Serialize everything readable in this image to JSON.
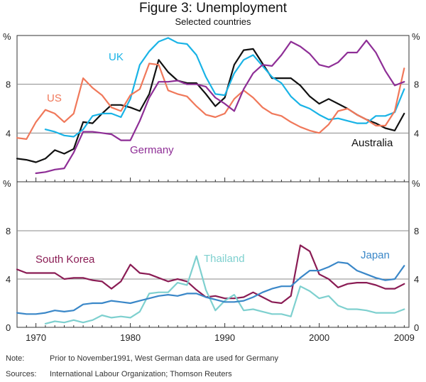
{
  "title": "Figure 3: Unemployment",
  "subtitle": "Selected countries",
  "unit_label": "%",
  "notes": [
    {
      "label": "Note:",
      "text": "Prior to November1991, West German data are used for Germany"
    },
    {
      "label": "Sources:",
      "text": "International Labour Organization; Thomson Reuters"
    }
  ],
  "colors": {
    "Australia": "#111111",
    "UK": "#19b3e6",
    "US": "#f0785a",
    "Germany": "#8e2e96",
    "South Korea": "#8a1c54",
    "Thailand": "#7ed0cf",
    "Japan": "#3a87c8"
  },
  "chart_data": [
    {
      "type": "line",
      "panel": "top",
      "xlim": [
        1968,
        2009.5
      ],
      "ylim": [
        0,
        12
      ],
      "yticks": [
        4,
        8
      ],
      "xticks": [
        1970,
        1980,
        1990,
        2000,
        2009
      ],
      "series": [
        {
          "name": "Australia",
          "x": [
            1968,
            1969,
            1970,
            1971,
            1972,
            1973,
            1974,
            1975,
            1976,
            1977,
            1978,
            1979,
            1980,
            1981,
            1982,
            1983,
            1984,
            1985,
            1986,
            1987,
            1988,
            1989,
            1990,
            1991,
            1992,
            1993,
            1994,
            1995,
            1996,
            1997,
            1998,
            1999,
            2000,
            2001,
            2002,
            2003,
            2004,
            2005,
            2006,
            2007,
            2008,
            2009
          ],
          "y": [
            1.9,
            1.8,
            1.6,
            1.9,
            2.6,
            2.3,
            2.7,
            4.9,
            4.8,
            5.6,
            6.3,
            6.3,
            6.1,
            5.8,
            7.2,
            10.0,
            9.0,
            8.3,
            8.1,
            8.1,
            7.2,
            6.2,
            6.9,
            9.6,
            10.8,
            10.9,
            9.7,
            8.5,
            8.5,
            8.5,
            7.9,
            7.0,
            6.4,
            6.8,
            6.4,
            6.0,
            5.5,
            5.1,
            4.8,
            4.4,
            4.2,
            5.6
          ]
        },
        {
          "name": "UK",
          "x": [
            1971,
            1972,
            1973,
            1974,
            1975,
            1976,
            1977,
            1978,
            1979,
            1980,
            1981,
            1982,
            1983,
            1984,
            1985,
            1986,
            1987,
            1988,
            1989,
            1990,
            1991,
            1992,
            1993,
            1994,
            1995,
            1996,
            1997,
            1998,
            1999,
            2000,
            2001,
            2002,
            2003,
            2004,
            2005,
            2006,
            2007,
            2008,
            2009
          ],
          "y": [
            4.3,
            4.1,
            3.8,
            3.7,
            4.3,
            5.4,
            5.6,
            5.6,
            5.3,
            6.8,
            9.6,
            10.7,
            11.5,
            11.8,
            11.4,
            11.3,
            10.4,
            8.6,
            7.2,
            7.1,
            8.9,
            10.0,
            10.4,
            9.5,
            8.6,
            8.1,
            7.0,
            6.3,
            6.0,
            5.5,
            5.1,
            5.2,
            5.0,
            4.8,
            4.8,
            5.4,
            5.4,
            5.7,
            7.6
          ]
        },
        {
          "name": "US",
          "x": [
            1968,
            1969,
            1970,
            1971,
            1972,
            1973,
            1974,
            1975,
            1976,
            1977,
            1978,
            1979,
            1980,
            1981,
            1982,
            1983,
            1984,
            1985,
            1986,
            1987,
            1988,
            1989,
            1990,
            1991,
            1992,
            1993,
            1994,
            1995,
            1996,
            1997,
            1998,
            1999,
            2000,
            2001,
            2002,
            2003,
            2004,
            2005,
            2006,
            2007,
            2008,
            2009
          ],
          "y": [
            3.6,
            3.5,
            4.9,
            5.9,
            5.6,
            4.9,
            5.6,
            8.5,
            7.7,
            7.1,
            6.1,
            5.8,
            7.1,
            7.6,
            9.7,
            9.6,
            7.5,
            7.2,
            7.0,
            6.2,
            5.5,
            5.3,
            5.6,
            6.8,
            7.5,
            6.9,
            6.1,
            5.6,
            5.4,
            4.9,
            4.5,
            4.2,
            4.0,
            4.7,
            5.8,
            6.0,
            5.5,
            5.1,
            4.6,
            4.6,
            5.8,
            9.3
          ]
        },
        {
          "name": "Germany",
          "x": [
            1970,
            1971,
            1972,
            1973,
            1974,
            1975,
            1976,
            1977,
            1978,
            1979,
            1980,
            1981,
            1982,
            1983,
            1984,
            1985,
            1986,
            1987,
            1988,
            1989,
            1990,
            1991,
            1992,
            1993,
            1994,
            1995,
            1996,
            1997,
            1998,
            1999,
            2000,
            2001,
            2002,
            2003,
            2004,
            2005,
            2006,
            2007,
            2008,
            2009
          ],
          "y": [
            0.7,
            0.8,
            1.0,
            1.1,
            2.4,
            4.1,
            4.1,
            4.0,
            3.9,
            3.4,
            3.4,
            5.0,
            6.9,
            8.2,
            8.2,
            8.3,
            8.0,
            8.0,
            7.8,
            6.9,
            6.4,
            5.8,
            7.6,
            8.9,
            9.6,
            9.5,
            10.4,
            11.5,
            11.1,
            10.5,
            9.6,
            9.4,
            9.8,
            10.6,
            10.6,
            11.6,
            10.6,
            9.1,
            7.9,
            8.2
          ]
        }
      ],
      "annotations": [
        "UK",
        "US",
        "Germany",
        "Australia"
      ]
    },
    {
      "type": "line",
      "panel": "bottom",
      "xlim": [
        1968,
        2009.5
      ],
      "ylim": [
        0,
        12
      ],
      "yticks": [
        0,
        4,
        8
      ],
      "xticks": [
        1970,
        1980,
        1990,
        2000,
        2009
      ],
      "series": [
        {
          "name": "South Korea",
          "x": [
            1968,
            1969,
            1970,
            1971,
            1972,
            1973,
            1974,
            1975,
            1976,
            1977,
            1978,
            1979,
            1980,
            1981,
            1982,
            1983,
            1984,
            1985,
            1986,
            1987,
            1988,
            1989,
            1990,
            1991,
            1992,
            1993,
            1994,
            1995,
            1996,
            1997,
            1998,
            1999,
            2000,
            2001,
            2002,
            2003,
            2004,
            2005,
            2006,
            2007,
            2008,
            2009
          ],
          "y": [
            4.8,
            4.5,
            4.5,
            4.5,
            4.5,
            4.0,
            4.1,
            4.1,
            3.9,
            3.8,
            3.2,
            3.8,
            5.2,
            4.5,
            4.4,
            4.1,
            3.8,
            4.0,
            3.8,
            3.1,
            2.5,
            2.6,
            2.4,
            2.4,
            2.5,
            2.9,
            2.5,
            2.1,
            2.0,
            2.6,
            6.8,
            6.3,
            4.4,
            4.0,
            3.3,
            3.6,
            3.7,
            3.7,
            3.5,
            3.2,
            3.2,
            3.6
          ]
        },
        {
          "name": "Thailand",
          "x": [
            1971,
            1972,
            1973,
            1974,
            1975,
            1976,
            1977,
            1978,
            1979,
            1980,
            1981,
            1982,
            1983,
            1984,
            1985,
            1986,
            1987,
            1988,
            1989,
            1990,
            1991,
            1992,
            1993,
            1994,
            1995,
            1996,
            1997,
            1998,
            1999,
            2000,
            2001,
            2002,
            2003,
            2004,
            2005,
            2006,
            2007,
            2008,
            2009
          ],
          "y": [
            0.3,
            0.5,
            0.4,
            0.6,
            0.4,
            0.6,
            1.0,
            0.8,
            0.9,
            0.8,
            1.3,
            2.8,
            2.9,
            2.9,
            3.7,
            3.5,
            5.9,
            3.1,
            1.4,
            2.2,
            2.7,
            1.4,
            1.5,
            1.3,
            1.1,
            1.1,
            0.9,
            3.4,
            3.0,
            2.4,
            2.6,
            1.8,
            1.5,
            1.5,
            1.4,
            1.2,
            1.2,
            1.2,
            1.5
          ]
        },
        {
          "name": "Japan",
          "x": [
            1968,
            1969,
            1970,
            1971,
            1972,
            1973,
            1974,
            1975,
            1976,
            1977,
            1978,
            1979,
            1980,
            1981,
            1982,
            1983,
            1984,
            1985,
            1986,
            1987,
            1988,
            1989,
            1990,
            1991,
            1992,
            1993,
            1994,
            1995,
            1996,
            1997,
            1998,
            1999,
            2000,
            2001,
            2002,
            2003,
            2004,
            2005,
            2006,
            2007,
            2008,
            2009
          ],
          "y": [
            1.2,
            1.1,
            1.1,
            1.2,
            1.4,
            1.3,
            1.4,
            1.9,
            2.0,
            2.0,
            2.2,
            2.1,
            2.0,
            2.2,
            2.4,
            2.6,
            2.7,
            2.6,
            2.8,
            2.8,
            2.5,
            2.3,
            2.1,
            2.1,
            2.2,
            2.5,
            2.9,
            3.2,
            3.4,
            3.4,
            4.1,
            4.7,
            4.7,
            5.0,
            5.4,
            5.3,
            4.7,
            4.4,
            4.1,
            3.9,
            4.0,
            5.1
          ]
        }
      ],
      "annotations": [
        "South Korea",
        "Thailand",
        "Japan"
      ]
    }
  ]
}
